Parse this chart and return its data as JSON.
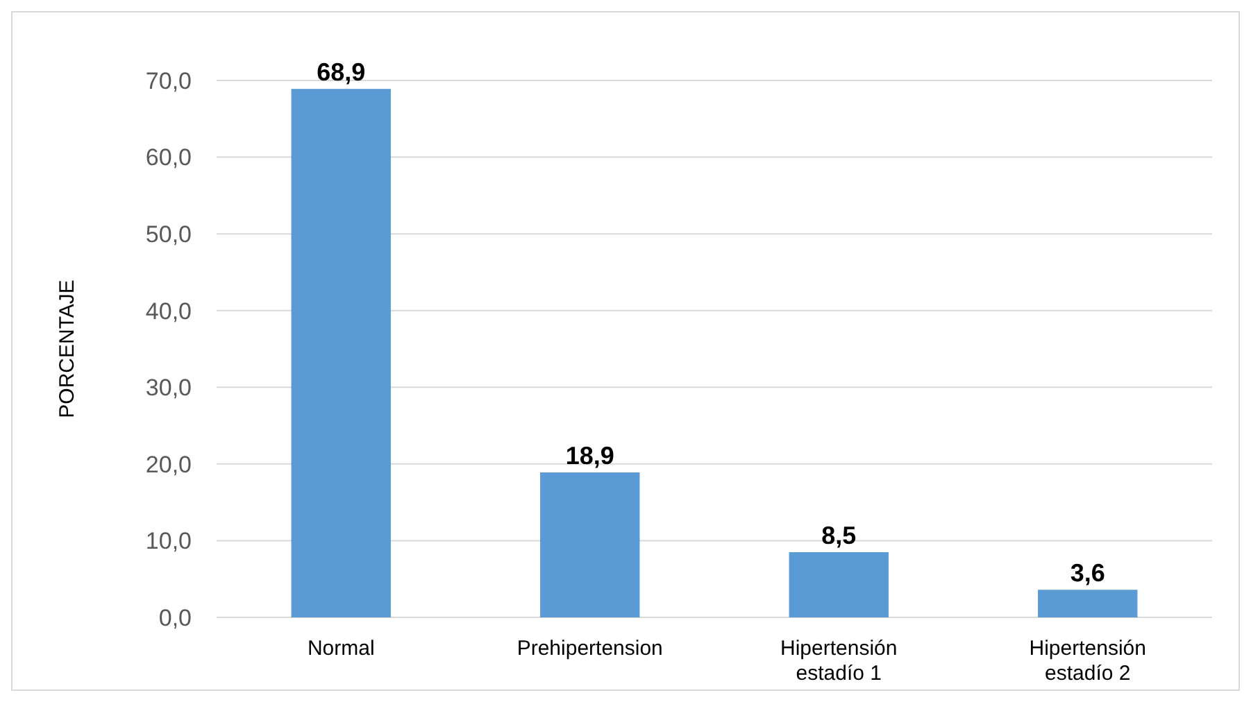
{
  "chart_data": {
    "type": "bar",
    "ylabel": "PORCENTAJE",
    "categories": [
      "Normal",
      "Prehipertension",
      "Hipertensión estadío 1",
      "Hipertensión estadío 2"
    ],
    "values": [
      68.9,
      18.9,
      8.5,
      3.6
    ],
    "value_labels": [
      "68,9",
      "18,9",
      "8,5",
      "3,6"
    ],
    "color": "#5b9bd5",
    "ylim": [
      0,
      70
    ],
    "yticks": [
      {
        "value": 0,
        "label": "0,0"
      },
      {
        "value": 10,
        "label": "10,0"
      },
      {
        "value": 20,
        "label": "20,0"
      },
      {
        "value": 30,
        "label": "30,0"
      },
      {
        "value": 40,
        "label": "40,0"
      },
      {
        "value": 50,
        "label": "50,0"
      },
      {
        "value": 60,
        "label": "60,0"
      },
      {
        "value": 70,
        "label": "70,0"
      }
    ],
    "grid": "y"
  }
}
